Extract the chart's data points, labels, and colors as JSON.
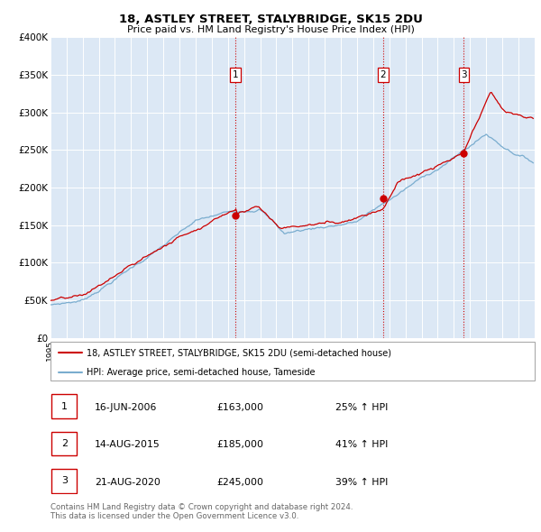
{
  "title": "18, ASTLEY STREET, STALYBRIDGE, SK15 2DU",
  "subtitle": "Price paid vs. HM Land Registry's House Price Index (HPI)",
  "bg_color": "#dce8f5",
  "red_line_label": "18, ASTLEY STREET, STALYBRIDGE, SK15 2DU (semi-detached house)",
  "blue_line_label": "HPI: Average price, semi-detached house, Tameside",
  "ylim": [
    0,
    400000
  ],
  "yticks": [
    0,
    50000,
    100000,
    150000,
    200000,
    250000,
    300000,
    350000,
    400000
  ],
  "ytick_labels": [
    "£0",
    "£50K",
    "£100K",
    "£150K",
    "£200K",
    "£250K",
    "£300K",
    "£350K",
    "£400K"
  ],
  "sale_prices": [
    163000,
    185000,
    245000
  ],
  "sale_labels": [
    "1",
    "2",
    "3"
  ],
  "vline_color": "#cc0000",
  "footer_text": "Contains HM Land Registry data © Crown copyright and database right 2024.\nThis data is licensed under the Open Government Licence v3.0.",
  "table_rows": [
    [
      "1",
      "16-JUN-2006",
      "£163,000",
      "25% ↑ HPI"
    ],
    [
      "2",
      "14-AUG-2015",
      "£185,000",
      "41% ↑ HPI"
    ],
    [
      "3",
      "21-AUG-2020",
      "£245,000",
      "39% ↑ HPI"
    ]
  ],
  "red_color": "#cc0000",
  "blue_color": "#7aadcf"
}
